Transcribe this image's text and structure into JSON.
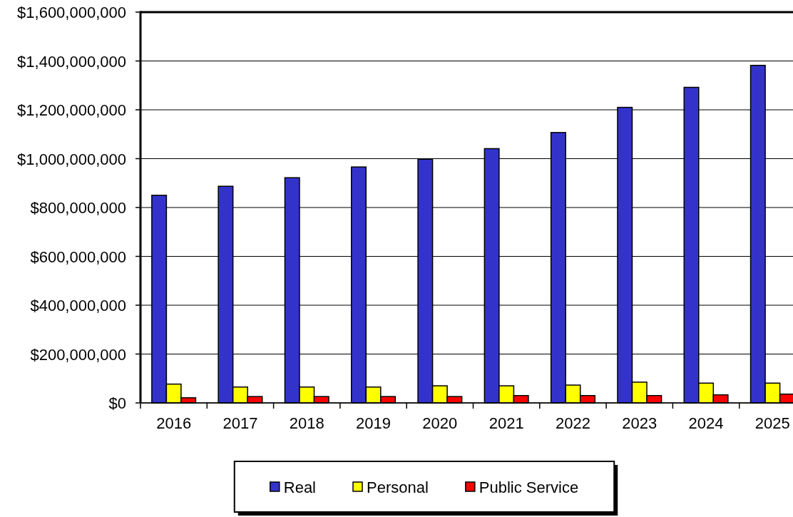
{
  "chart_data": {
    "type": "bar",
    "categories": [
      "2016",
      "2017",
      "2018",
      "2019",
      "2020",
      "2021",
      "2022",
      "2023",
      "2024",
      "2025"
    ],
    "series": [
      {
        "name": "Real",
        "color": "#3333cc",
        "values": [
          850000000,
          887000000,
          922000000,
          966000000,
          998000000,
          1041000000,
          1107000000,
          1210000000,
          1292000000,
          1382000000
        ]
      },
      {
        "name": "Personal",
        "color": "#ffff00",
        "values": [
          77000000,
          65000000,
          65000000,
          65000000,
          70000000,
          70000000,
          73000000,
          85000000,
          81000000,
          81000000
        ]
      },
      {
        "name": "Public Service",
        "color": "#ff0000",
        "values": [
          21000000,
          26000000,
          26000000,
          26000000,
          26000000,
          30000000,
          30000000,
          30000000,
          33000000,
          36000000
        ]
      }
    ],
    "ylim": [
      0,
      1600000000
    ],
    "yticks": [
      {
        "value": 0,
        "label": "$0"
      },
      {
        "value": 200000000,
        "label": "$200,000,000"
      },
      {
        "value": 400000000,
        "label": "$400,000,000"
      },
      {
        "value": 600000000,
        "label": "$600,000,000"
      },
      {
        "value": 800000000,
        "label": "$800,000,000"
      },
      {
        "value": 1000000000,
        "label": "$1,000,000,000"
      },
      {
        "value": 1200000000,
        "label": "$1,200,000,000"
      },
      {
        "value": 1400000000,
        "label": "$1,400,000,000"
      },
      {
        "value": 1600000000,
        "label": "$1,600,000,000"
      }
    ],
    "grid": "y",
    "legend": "bottom"
  }
}
